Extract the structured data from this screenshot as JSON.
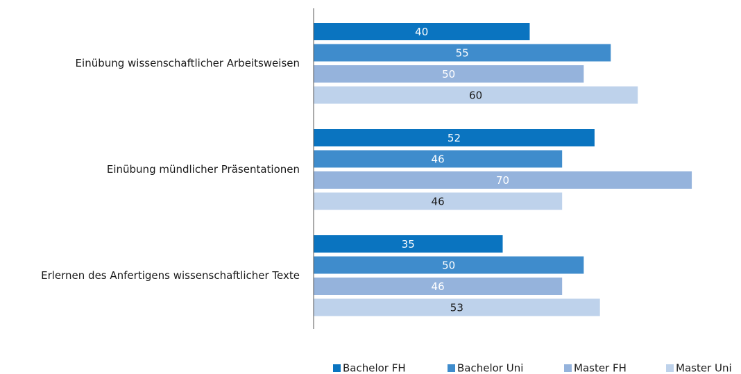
{
  "chart_data": {
    "type": "hbar",
    "categories": [
      "Einübung wissenschaftlicher Arbeitsweisen",
      "Einübung mündlicher Präsentationen",
      "Erlernen des Anfertigens wissenschaftlicher Texte"
    ],
    "series": [
      {
        "name": "Bachelor FH",
        "color": "#0a74c0",
        "label_color": "#ffffff",
        "values": [
          40,
          52,
          35
        ]
      },
      {
        "name": "Bachelor Uni",
        "color": "#3f8ccc",
        "label_color": "#ffffff",
        "values": [
          55,
          46,
          50
        ]
      },
      {
        "name": "Master FH",
        "color": "#95b3dc",
        "label_color": "#ffffff",
        "values": [
          50,
          70,
          46
        ]
      },
      {
        "name": "Master Uni",
        "color": "#bed2eb",
        "label_color": "#1a1a1a",
        "values": [
          60,
          46,
          53
        ]
      }
    ],
    "xlim": [
      0,
      75
    ],
    "legend": "bottom"
  }
}
